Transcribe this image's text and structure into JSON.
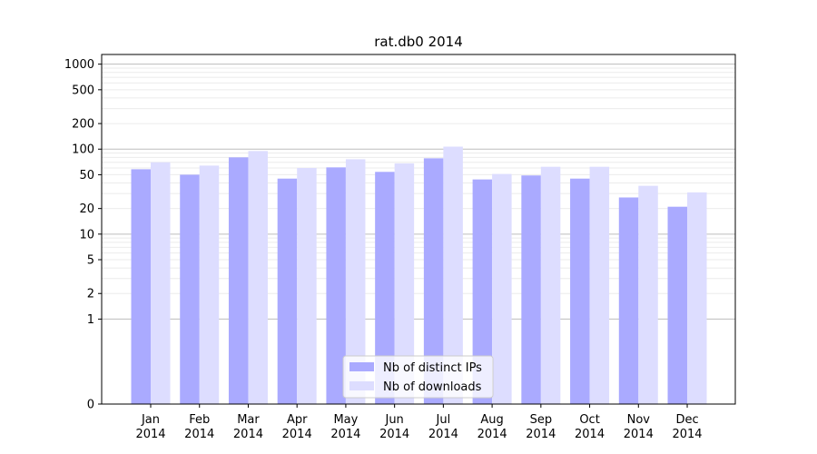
{
  "chart_data": {
    "type": "bar",
    "title": "rat.db0 2014",
    "xlabel": "",
    "ylabel": "",
    "y_scale": "symlog",
    "ylim": [
      0,
      1300
    ],
    "yticks": [
      0,
      1,
      2,
      5,
      10,
      20,
      50,
      100,
      200,
      500,
      1000
    ],
    "ytick_labels": [
      "0",
      "1",
      "2",
      "5",
      "10",
      "20",
      "50",
      "100",
      "200",
      "500",
      "1000"
    ],
    "grid": true,
    "legend_position": "bottom-center",
    "categories": [
      "Jan\n2014",
      "Feb\n2014",
      "Mar\n2014",
      "Apr\n2014",
      "May\n2014",
      "Jun\n2014",
      "Jul\n2014",
      "Aug\n2014",
      "Sep\n2014",
      "Oct\n2014",
      "Nov\n2014",
      "Dec\n2014"
    ],
    "category_lines": [
      [
        "Jan",
        "2014"
      ],
      [
        "Feb",
        "2014"
      ],
      [
        "Mar",
        "2014"
      ],
      [
        "Apr",
        "2014"
      ],
      [
        "May",
        "2014"
      ],
      [
        "Jun",
        "2014"
      ],
      [
        "Jul",
        "2014"
      ],
      [
        "Aug",
        "2014"
      ],
      [
        "Sep",
        "2014"
      ],
      [
        "Oct",
        "2014"
      ],
      [
        "Nov",
        "2014"
      ],
      [
        "Dec",
        "2014"
      ]
    ],
    "series": [
      {
        "name": "Nb of distinct IPs",
        "color": "#aaaaff",
        "values": [
          58,
          50,
          80,
          45,
          61,
          54,
          78,
          44,
          49,
          45,
          27,
          21
        ]
      },
      {
        "name": "Nb of downloads",
        "color": "#ddddff",
        "values": [
          70,
          64,
          95,
          60,
          76,
          68,
          107,
          51,
          62,
          62,
          37,
          31
        ]
      }
    ]
  }
}
